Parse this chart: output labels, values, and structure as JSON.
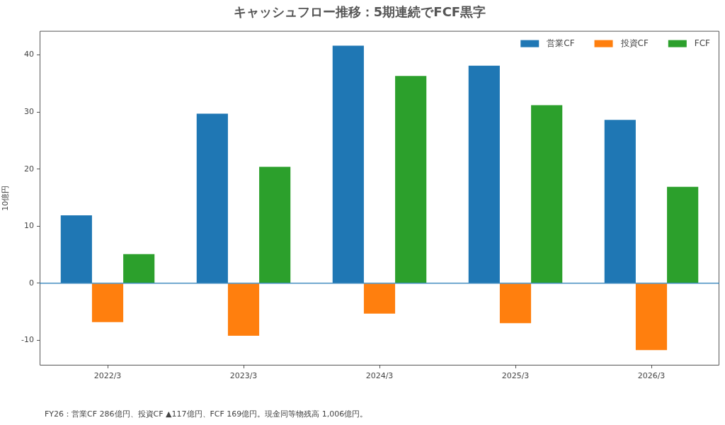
{
  "chart_data": {
    "type": "bar",
    "title": "キャッシュフロー推移：5期連続でFCF黒字",
    "ylabel": "10億円",
    "categories": [
      "2022/3",
      "2023/3",
      "2024/3",
      "2025/3",
      "2026/3"
    ],
    "series": [
      {
        "name": "営業CF",
        "color": "#1f77b4",
        "values": [
          11.9,
          29.7,
          41.6,
          38.1,
          28.6
        ]
      },
      {
        "name": "投資CF",
        "color": "#ff7f0e",
        "values": [
          -6.8,
          -9.2,
          -5.3,
          -7.0,
          -11.7
        ]
      },
      {
        "name": "FCF",
        "color": "#2ca02c",
        "values": [
          5.1,
          20.4,
          36.3,
          31.2,
          16.9
        ]
      }
    ],
    "ylim": [
      -14.4,
      44.2
    ],
    "yticks": [
      -10,
      0,
      10,
      20,
      30,
      40
    ],
    "legend": "top right",
    "ref_lines": [
      {
        "axis": "y",
        "value": 0,
        "color": "#1f77b4"
      }
    ],
    "annotations": [
      "FY26：営業CF 286億円、投資CF ▲117億円、FCF 169億円。現金同等物残高 1,006億円。"
    ]
  }
}
